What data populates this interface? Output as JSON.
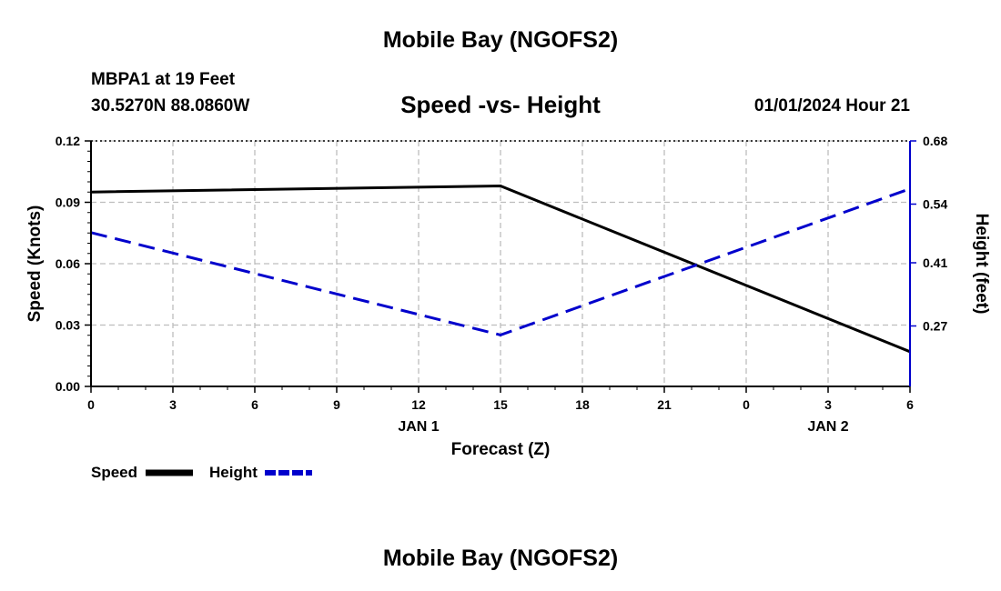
{
  "header": {
    "title": "Mobile Bay (NGOFS2)",
    "station": "MBPA1 at 19 Feet",
    "coordinates": "30.5270N  88.0860W",
    "chart_title": "Speed -vs- Height",
    "datetime": "01/01/2024 Hour 21"
  },
  "footer": {
    "title": "Mobile Bay (NGOFS2)"
  },
  "legend": [
    {
      "label": "Speed",
      "color": "#000000",
      "style": "solid"
    },
    {
      "label": "Height",
      "color": "#0000cc",
      "style": "dashed"
    }
  ],
  "chart_data": {
    "type": "line",
    "title": "Speed -vs- Height",
    "xlabel": "Forecast (Z)",
    "ylabel_left": "Speed (Knots)",
    "ylabel_right": "Height (feet)",
    "x_ticks": [
      "0",
      "3",
      "6",
      "9",
      "12",
      "15",
      "18",
      "21",
      "0",
      "3",
      "6"
    ],
    "x_hours": [
      0,
      3,
      6,
      9,
      12,
      15,
      18,
      21,
      24,
      27,
      30
    ],
    "x_date_labels": [
      {
        "hour": 12,
        "label": "JAN 1"
      },
      {
        "hour": 27,
        "label": "JAN 2"
      }
    ],
    "xlim": [
      0,
      30
    ],
    "ylim_left": [
      0,
      0.12
    ],
    "yticks_left": [
      "0.00",
      "0.03",
      "0.06",
      "0.09",
      "0.12"
    ],
    "ylim_right": [
      0.136,
      0.68
    ],
    "yticks_right": [
      "0.27",
      "0.41",
      "0.54",
      "0.68"
    ],
    "grid": true,
    "series": [
      {
        "name": "Speed",
        "axis": "left",
        "color": "#000000",
        "style": "solid",
        "x": [
          0,
          15,
          30
        ],
        "y": [
          0.095,
          0.098,
          0.017
        ]
      },
      {
        "name": "Height",
        "axis": "right",
        "color": "#0000cc",
        "style": "dashed",
        "x": [
          0,
          15,
          30
        ],
        "y": [
          0.477,
          0.25,
          0.574
        ]
      }
    ]
  }
}
